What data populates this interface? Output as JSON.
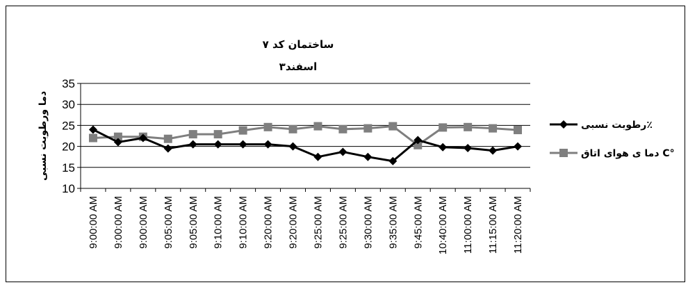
{
  "chart_data": {
    "type": "line",
    "title": "ساختمان کد ۷",
    "subtitle": "۳اسفند",
    "xlabel": "",
    "ylabel": "دما ورطوبت نسبی",
    "ylim": [
      10,
      35
    ],
    "yticks": [
      10,
      15,
      20,
      25,
      30,
      35
    ],
    "grid": true,
    "legend_position": "right",
    "categories": [
      "9:00:00 AM",
      "9:00:00 AM",
      "9:00:00 AM",
      "9:05:00 AM",
      "9:05:00 AM",
      "9:10:00 AM",
      "9:10:00 AM",
      "9:20:00 AM",
      "9:20:00 AM",
      "9:25:00 AM",
      "9:25:00 AM",
      "9:30:00 AM",
      "9:35:00 AM",
      "9:45:00 AM",
      "10:40:00 AM",
      "11:00:00 AM",
      "11:15:00 AM",
      "11:20:00 AM"
    ],
    "series": [
      {
        "name": "رطوبت نسبی٪",
        "color": "#000000",
        "marker": "diamond",
        "values": [
          24,
          21,
          22,
          19.5,
          20.5,
          20.5,
          20.5,
          20.5,
          20,
          17.5,
          18.7,
          17.5,
          16.5,
          21.5,
          19.8,
          19.6,
          19,
          20
        ]
      },
      {
        "name": "دما ی هوای اتاق C°",
        "color": "#7f7f7f",
        "marker": "square",
        "values": [
          22,
          22.3,
          22.3,
          21.8,
          22.9,
          22.9,
          23.8,
          24.6,
          24.1,
          24.8,
          24.1,
          24.3,
          24.8,
          20.3,
          24.5,
          24.6,
          24.3,
          23.9
        ]
      }
    ]
  }
}
